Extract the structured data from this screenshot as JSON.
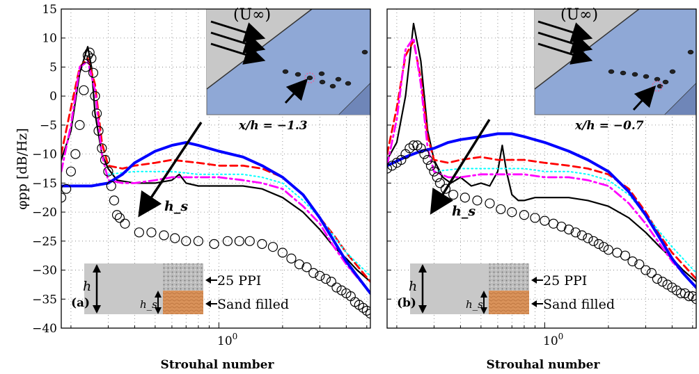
{
  "figure": {
    "ylabel": "φpp [dB/Hz]",
    "xlabel": "Strouhal number"
  },
  "chart_data": [
    {
      "type": "line",
      "panel_label": "(a)",
      "xlabel": "Strouhal number",
      "ylabel": "φpp [dB/Hz]",
      "x_scale": "log",
      "xlim": [
        0.18,
        5.2
      ],
      "ylim": [
        -40,
        15
      ],
      "yticks": [
        15,
        10,
        5,
        0,
        -5,
        -10,
        -15,
        -20,
        -25,
        -30,
        -35,
        -40
      ],
      "xtick_labels": [
        "10^0"
      ],
      "grid": true,
      "annotation": "h_s",
      "inset_text": [
        "(U∞)",
        "x/h = −1.3"
      ],
      "schematic_labels": [
        "h",
        "h_s",
        "25 PPI",
        "Sand filled"
      ],
      "series": [
        {
          "color": "#000000",
          "style": "solid",
          "x": [
            0.18,
            0.2,
            0.22,
            0.24,
            0.25,
            0.26,
            0.28,
            0.3,
            0.33,
            0.4,
            0.5,
            0.6,
            0.65,
            0.7,
            0.8,
            1.0,
            1.3,
            1.6,
            2.0,
            2.5,
            3.0,
            3.5,
            4.0,
            4.5,
            5.2
          ],
          "y": [
            -11,
            -6,
            4,
            8.5,
            5,
            -3,
            -10,
            -12.5,
            -14.5,
            -15,
            -15,
            -14.5,
            -13.5,
            -15,
            -15.5,
            -15.5,
            -15.5,
            -16,
            -17.5,
            -20,
            -23,
            -26,
            -28,
            -30,
            -32
          ]
        },
        {
          "color": "#ff0000",
          "style": "dashed",
          "x": [
            0.18,
            0.2,
            0.22,
            0.24,
            0.26,
            0.28,
            0.3,
            0.35,
            0.4,
            0.5,
            0.6,
            0.8,
            1.0,
            1.3,
            1.6,
            2.0,
            2.5,
            3.0,
            3.5,
            4.0,
            5.2
          ],
          "y": [
            -10,
            -2,
            5,
            6.5,
            2,
            -8,
            -12,
            -12.5,
            -12,
            -11.5,
            -11,
            -11.5,
            -12,
            -12,
            -12.5,
            -14,
            -17,
            -21,
            -24,
            -27,
            -32
          ]
        },
        {
          "color": "#00ffff",
          "style": "dotted",
          "x": [
            0.3,
            0.4,
            0.5,
            0.6,
            0.8,
            1.0,
            1.3,
            1.6,
            2.0,
            2.5,
            3.0,
            4.0,
            5.2
          ],
          "y": [
            -13.5,
            -13,
            -13,
            -13,
            -13.5,
            -13.5,
            -13.5,
            -14,
            -15,
            -18,
            -21,
            -27,
            -31
          ]
        },
        {
          "color": "#ff00ff",
          "style": "dash-dot",
          "x": [
            0.18,
            0.2,
            0.22,
            0.24,
            0.26,
            0.28,
            0.3,
            0.35,
            0.4,
            0.5,
            0.6,
            0.8,
            1.0,
            1.3,
            1.6,
            2.0,
            2.5,
            3.0,
            3.5,
            4.0,
            5.2
          ],
          "y": [
            -13,
            -5,
            5,
            6,
            1,
            -10,
            -14.5,
            -15,
            -15,
            -14.5,
            -14,
            -14,
            -14,
            -14.5,
            -15,
            -16,
            -19,
            -22,
            -26,
            -29,
            -34
          ]
        },
        {
          "color": "#0000ff",
          "style": "solid-thick",
          "x": [
            0.18,
            0.25,
            0.3,
            0.35,
            0.4,
            0.5,
            0.6,
            0.7,
            0.8,
            1.0,
            1.3,
            1.6,
            2.0,
            2.5,
            3.0,
            3.5,
            4.0,
            4.5,
            5.2
          ],
          "y": [
            -15.5,
            -15.5,
            -15,
            -13.5,
            -11.5,
            -9.5,
            -8.5,
            -8,
            -8.5,
            -9.5,
            -10.5,
            -12,
            -14,
            -17,
            -21,
            -25,
            -28.5,
            -31,
            -34
          ]
        },
        {
          "color": "#000000",
          "style": "circles",
          "x": [
            0.18,
            0.19,
            0.2,
            0.21,
            0.22,
            0.23,
            0.235,
            0.24,
            0.245,
            0.25,
            0.255,
            0.26,
            0.265,
            0.27,
            0.28,
            0.29,
            0.3,
            0.31,
            0.32,
            0.33,
            0.34,
            0.36,
            0.42,
            0.48,
            0.55,
            0.62,
            0.7,
            0.8,
            0.95,
            1.1,
            1.25,
            1.4,
            1.6,
            1.8,
            2.0,
            2.2,
            2.4,
            2.6,
            2.8,
            3.0,
            3.2,
            3.4,
            3.6,
            3.8,
            4.0,
            4.2,
            4.4,
            4.6,
            4.8,
            5.0,
            5.2
          ],
          "y": [
            -17.5,
            -16,
            -13,
            -10,
            -5,
            1,
            5,
            7,
            7.5,
            6.5,
            4,
            0,
            -3,
            -6,
            -9,
            -11,
            -13,
            -15.5,
            -18,
            -20.5,
            -21,
            -22,
            -23.5,
            -23.5,
            -24,
            -24.5,
            -25,
            -25,
            -25.5,
            -25,
            -25,
            -25,
            -25.5,
            -26,
            -27,
            -28,
            -29,
            -29.5,
            -30.5,
            -31,
            -31.5,
            -32,
            -33,
            -33.5,
            -34,
            -34.5,
            -35.5,
            -36,
            -36.5,
            -37,
            -37.5
          ]
        }
      ]
    },
    {
      "type": "line",
      "panel_label": "(b)",
      "xlabel": "Strouhal number",
      "ylabel": "φpp [dB/Hz]",
      "x_scale": "log",
      "xlim": [
        0.18,
        5.2
      ],
      "ylim": [
        -40,
        15
      ],
      "yticks": [
        15,
        10,
        5,
        0,
        -5,
        -10,
        -15,
        -20,
        -25,
        -30,
        -35,
        -40
      ],
      "xtick_labels": [
        "10^0"
      ],
      "grid": true,
      "annotation": "h_s",
      "inset_text": [
        "(U∞)",
        "x/h = −0.7"
      ],
      "schematic_labels": [
        "h",
        "h_s",
        "25 PPI",
        "Sand filled"
      ],
      "series": [
        {
          "color": "#000000",
          "style": "solid",
          "x": [
            0.18,
            0.2,
            0.22,
            0.24,
            0.26,
            0.28,
            0.3,
            0.33,
            0.36,
            0.4,
            0.45,
            0.5,
            0.55,
            0.6,
            0.63,
            0.66,
            0.7,
            0.75,
            0.8,
            0.9,
            1.0,
            1.3,
            1.6,
            2.0,
            2.5,
            3.0,
            3.5,
            4.0,
            4.5,
            5.2
          ],
          "y": [
            -11,
            -8,
            0,
            12.5,
            6,
            -6,
            -11,
            -14,
            -15,
            -14,
            -15.5,
            -15,
            -15.5,
            -13,
            -8.5,
            -13,
            -17,
            -18,
            -18,
            -17.5,
            -17.5,
            -17.5,
            -18,
            -19,
            -21,
            -23.5,
            -26,
            -28,
            -30,
            -32
          ]
        },
        {
          "color": "#ff0000",
          "style": "dashed",
          "x": [
            0.18,
            0.2,
            0.22,
            0.24,
            0.26,
            0.28,
            0.3,
            0.35,
            0.4,
            0.5,
            0.6,
            0.8,
            1.0,
            1.3,
            1.6,
            2.0,
            2.5,
            3.0,
            3.5,
            4.0,
            5.2
          ],
          "y": [
            -10,
            -2,
            7,
            9.5,
            3,
            -7,
            -11,
            -11.5,
            -11,
            -10.5,
            -11,
            -11,
            -11.5,
            -12,
            -12.5,
            -13.5,
            -16,
            -20,
            -24,
            -27,
            -31.5
          ]
        },
        {
          "color": "#00ffff",
          "style": "dotted",
          "x": [
            0.3,
            0.4,
            0.5,
            0.6,
            0.8,
            1.0,
            1.3,
            1.6,
            2.0,
            2.5,
            3.0,
            4.0,
            5.2
          ],
          "y": [
            -13,
            -12.5,
            -12.5,
            -12.5,
            -12.5,
            -13,
            -13,
            -13.5,
            -14.5,
            -17,
            -20.5,
            -26,
            -30.5
          ]
        },
        {
          "color": "#ff00ff",
          "style": "dash-dot",
          "x": [
            0.18,
            0.2,
            0.22,
            0.24,
            0.26,
            0.28,
            0.3,
            0.35,
            0.4,
            0.5,
            0.6,
            0.8,
            1.0,
            1.3,
            1.6,
            2.0,
            2.5,
            3.0,
            3.5,
            4.0,
            5.2
          ],
          "y": [
            -12,
            -4,
            8,
            10,
            2,
            -9,
            -13,
            -14,
            -14,
            -13.5,
            -13.5,
            -13.5,
            -14,
            -14,
            -14.5,
            -15.5,
            -18.5,
            -22,
            -25.5,
            -28.5,
            -33
          ]
        },
        {
          "color": "#0000ff",
          "style": "solid-thick",
          "x": [
            0.18,
            0.22,
            0.26,
            0.3,
            0.35,
            0.4,
            0.5,
            0.6,
            0.7,
            0.8,
            1.0,
            1.3,
            1.6,
            2.0,
            2.5,
            3.0,
            3.5,
            4.0,
            4.5,
            5.2
          ],
          "y": [
            -12,
            -10.5,
            -9.5,
            -9,
            -8,
            -7.5,
            -7,
            -6.5,
            -6.5,
            -7,
            -8,
            -9.5,
            -11,
            -13,
            -16.5,
            -20.5,
            -24.5,
            -28,
            -30.5,
            -33
          ]
        },
        {
          "color": "#000000",
          "style": "circles",
          "x": [
            0.18,
            0.19,
            0.2,
            0.21,
            0.22,
            0.23,
            0.24,
            0.25,
            0.26,
            0.27,
            0.28,
            0.29,
            0.3,
            0.31,
            0.32,
            0.34,
            0.37,
            0.42,
            0.48,
            0.55,
            0.62,
            0.7,
            0.8,
            0.9,
            1.0,
            1.1,
            1.2,
            1.3,
            1.4,
            1.5,
            1.6,
            1.7,
            1.8,
            1.9,
            2.0,
            2.2,
            2.4,
            2.6,
            2.8,
            3.0,
            3.2,
            3.4,
            3.6,
            3.8,
            4.0,
            4.2,
            4.4,
            4.6,
            4.8,
            5.0,
            5.2
          ],
          "y": [
            -12.5,
            -12,
            -11.5,
            -11,
            -10,
            -9,
            -8.5,
            -8.5,
            -9,
            -10,
            -11,
            -12,
            -13,
            -14,
            -15,
            -16,
            -17,
            -17.5,
            -18,
            -18.5,
            -19.5,
            -20,
            -20.5,
            -21,
            -21.5,
            -22,
            -22.5,
            -23,
            -23.5,
            -24,
            -24.5,
            -25,
            -25.5,
            -26,
            -26.5,
            -27,
            -27.5,
            -28.5,
            -29,
            -30,
            -30.5,
            -31.5,
            -32,
            -32.5,
            -33,
            -33.5,
            -34,
            -34,
            -34.5,
            -34.5,
            -35
          ]
        }
      ]
    }
  ]
}
